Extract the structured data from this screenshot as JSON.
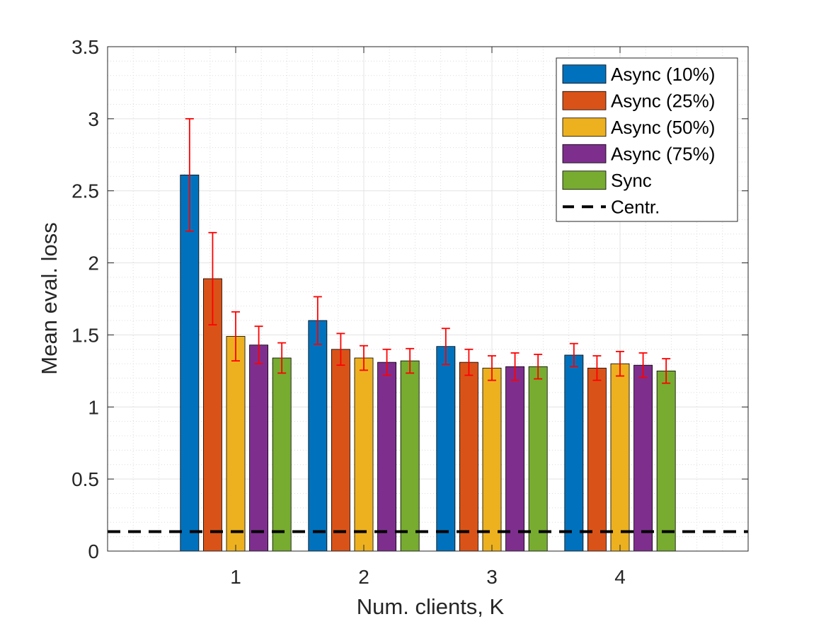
{
  "chart_data": {
    "type": "bar",
    "xlabel": "Num. clients, K",
    "ylabel": "Mean eval. loss",
    "categories": [
      "1",
      "2",
      "3",
      "4"
    ],
    "x_range": [
      0,
      5
    ],
    "ylim": [
      0,
      3.5
    ],
    "y_ticks": [
      0,
      0.5,
      1,
      1.5,
      2,
      2.5,
      3,
      3.5
    ],
    "y_tick_labels": [
      "0",
      "0.5",
      "1",
      "1.5",
      "2",
      "2.5",
      "3",
      "3.5"
    ],
    "grid": true,
    "minor_grid": true,
    "legend_position": "top-right",
    "error_bar_color": "#ff0000",
    "series": [
      {
        "name": "Async (10%)",
        "color": "#0072BD",
        "values": [
          2.61,
          1.6,
          1.42,
          1.36
        ],
        "errors": [
          0.39,
          0.165,
          0.125,
          0.08
        ]
      },
      {
        "name": "Async (25%)",
        "color": "#D95319",
        "values": [
          1.89,
          1.4,
          1.31,
          1.27
        ],
        "errors": [
          0.32,
          0.11,
          0.09,
          0.085
        ]
      },
      {
        "name": "Async (50%)",
        "color": "#EDB120",
        "values": [
          1.49,
          1.34,
          1.27,
          1.3
        ],
        "errors": [
          0.17,
          0.085,
          0.085,
          0.085
        ]
      },
      {
        "name": "Async (75%)",
        "color": "#7E2F8E",
        "values": [
          1.43,
          1.31,
          1.28,
          1.29
        ],
        "errors": [
          0.13,
          0.09,
          0.095,
          0.085
        ]
      },
      {
        "name": "Sync",
        "color": "#77AC30",
        "values": [
          1.34,
          1.32,
          1.28,
          1.25
        ],
        "errors": [
          0.105,
          0.085,
          0.085,
          0.085
        ]
      }
    ],
    "reference_line": {
      "name": "Centr.",
      "value": 0.135,
      "color": "#000000",
      "style": "dashed"
    }
  }
}
